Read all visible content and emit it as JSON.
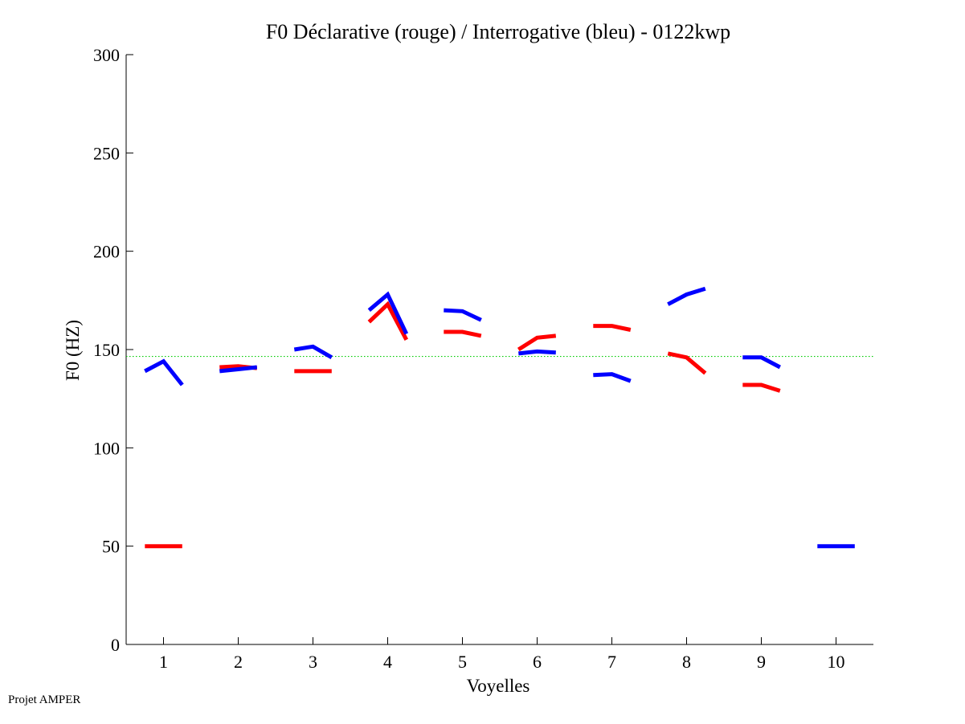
{
  "chart_data": {
    "type": "line",
    "title": "F0 Déclarative (rouge) / Interrogative (bleu) - 0122kwp",
    "xlabel": "Voyelles",
    "ylabel": "F0 (HZ)",
    "xlim": [
      0.5,
      10.5
    ],
    "ylim": [
      0,
      300
    ],
    "xticks": [
      "1",
      "2",
      "3",
      "4",
      "5",
      "6",
      "7",
      "8",
      "9",
      "10"
    ],
    "yticks": [
      "0",
      "50",
      "100",
      "150",
      "200",
      "250",
      "300"
    ],
    "reference_line": {
      "value": 146.5,
      "color": "#00cc00",
      "style": "dotted"
    },
    "series": [
      {
        "name": "Déclarative",
        "color": "#ff0000",
        "segments": [
          {
            "vowel": 1,
            "values": [
              50,
              50,
              50
            ]
          },
          {
            "vowel": 2,
            "values": [
              141,
              141.5,
              140.5
            ]
          },
          {
            "vowel": 3,
            "values": [
              139,
              139,
              139
            ]
          },
          {
            "vowel": 4,
            "values": [
              164,
              173,
              155
            ]
          },
          {
            "vowel": 5,
            "values": [
              159,
              159,
              157
            ]
          },
          {
            "vowel": 6,
            "values": [
              150,
              156,
              157
            ]
          },
          {
            "vowel": 7,
            "values": [
              162,
              162,
              160
            ]
          },
          {
            "vowel": 8,
            "values": [
              148,
              146,
              138
            ]
          },
          {
            "vowel": 9,
            "values": [
              132,
              132,
              129
            ]
          }
        ]
      },
      {
        "name": "Interrogative",
        "color": "#0000ff",
        "segments": [
          {
            "vowel": 1,
            "values": [
              139,
              144,
              132
            ]
          },
          {
            "vowel": 2,
            "values": [
              139,
              140,
              141
            ]
          },
          {
            "vowel": 3,
            "values": [
              150,
              151.5,
              146
            ]
          },
          {
            "vowel": 4,
            "values": [
              170,
              178,
              158
            ]
          },
          {
            "vowel": 5,
            "values": [
              170,
              169.5,
              165
            ]
          },
          {
            "vowel": 6,
            "values": [
              148,
              149,
              148.5
            ]
          },
          {
            "vowel": 7,
            "values": [
              137,
              137.5,
              134
            ]
          },
          {
            "vowel": 8,
            "values": [
              173,
              178,
              181
            ]
          },
          {
            "vowel": 9,
            "values": [
              146,
              146,
              141
            ]
          },
          {
            "vowel": 10,
            "values": [
              50,
              50,
              50
            ]
          }
        ]
      }
    ]
  },
  "footer": {
    "credit": "Projet AMPER"
  }
}
